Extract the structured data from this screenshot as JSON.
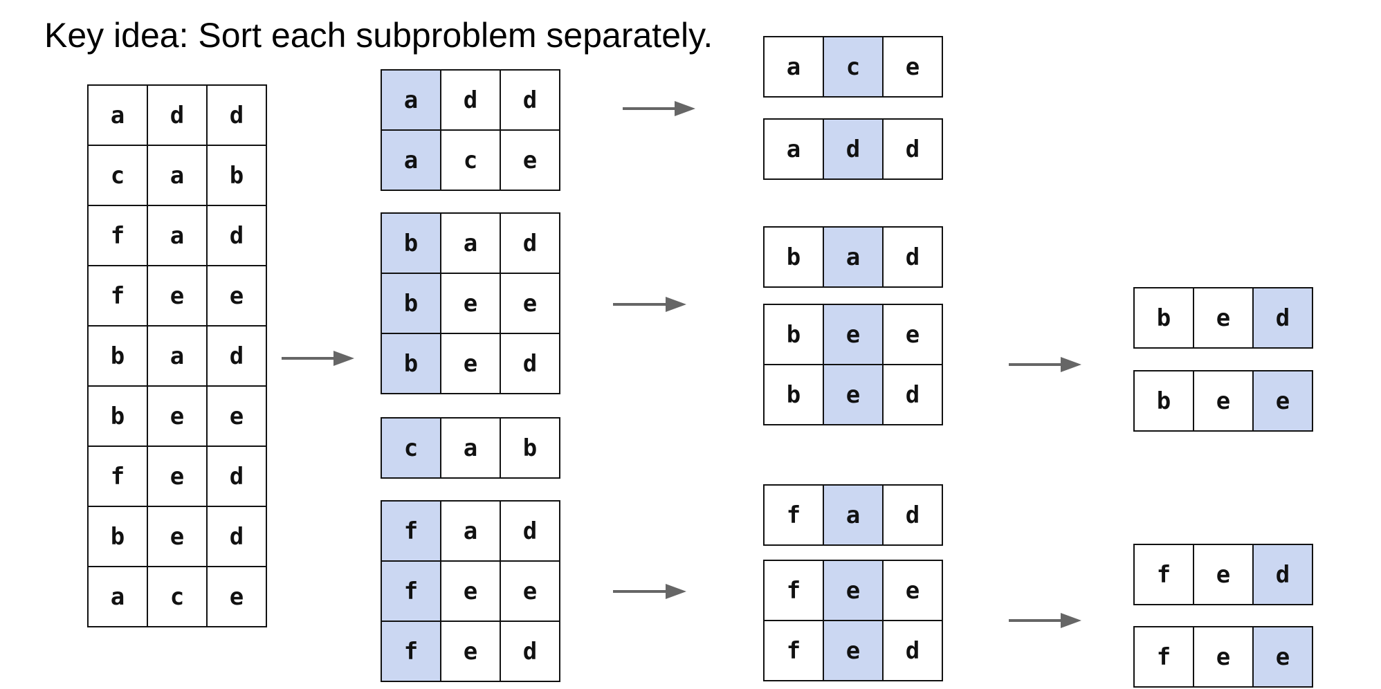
{
  "title": "Key idea: Sort each subproblem separately.",
  "colors": {
    "highlight": "#cbd7f2",
    "border": "#111111",
    "arrow": "#666666"
  },
  "input_table": {
    "rows": [
      [
        "a",
        "d",
        "d"
      ],
      [
        "c",
        "a",
        "b"
      ],
      [
        "f",
        "a",
        "d"
      ],
      [
        "f",
        "e",
        "e"
      ],
      [
        "b",
        "a",
        "d"
      ],
      [
        "b",
        "e",
        "e"
      ],
      [
        "f",
        "e",
        "d"
      ],
      [
        "b",
        "e",
        "d"
      ],
      [
        "a",
        "c",
        "e"
      ]
    ]
  },
  "stage1_groups": [
    {
      "rows": [
        [
          "a",
          "d",
          "d"
        ],
        [
          "a",
          "c",
          "e"
        ]
      ],
      "highlight_col": 0
    },
    {
      "rows": [
        [
          "b",
          "a",
          "d"
        ],
        [
          "b",
          "e",
          "e"
        ],
        [
          "b",
          "e",
          "d"
        ]
      ],
      "highlight_col": 0
    },
    {
      "rows": [
        [
          "c",
          "a",
          "b"
        ]
      ],
      "highlight_col": 0
    },
    {
      "rows": [
        [
          "f",
          "a",
          "d"
        ],
        [
          "f",
          "e",
          "e"
        ],
        [
          "f",
          "e",
          "d"
        ]
      ],
      "highlight_col": 0
    }
  ],
  "stage2_groups": [
    {
      "rows": [
        [
          "a",
          "c",
          "e"
        ]
      ],
      "highlight_col": 1
    },
    {
      "rows": [
        [
          "a",
          "d",
          "d"
        ]
      ],
      "highlight_col": 1
    },
    {
      "rows": [
        [
          "b",
          "a",
          "d"
        ]
      ],
      "highlight_col": 1
    },
    {
      "rows": [
        [
          "b",
          "e",
          "e"
        ],
        [
          "b",
          "e",
          "d"
        ]
      ],
      "highlight_col": 1
    },
    {
      "rows": [
        [
          "f",
          "a",
          "d"
        ]
      ],
      "highlight_col": 1
    },
    {
      "rows": [
        [
          "f",
          "e",
          "e"
        ],
        [
          "f",
          "e",
          "d"
        ]
      ],
      "highlight_col": 1
    }
  ],
  "stage3_groups": [
    {
      "rows": [
        [
          "b",
          "e",
          "d"
        ]
      ],
      "highlight_col": 2
    },
    {
      "rows": [
        [
          "b",
          "e",
          "e"
        ]
      ],
      "highlight_col": 2
    },
    {
      "rows": [
        [
          "f",
          "e",
          "d"
        ]
      ],
      "highlight_col": 2
    },
    {
      "rows": [
        [
          "f",
          "e",
          "e"
        ]
      ],
      "highlight_col": 2
    }
  ]
}
